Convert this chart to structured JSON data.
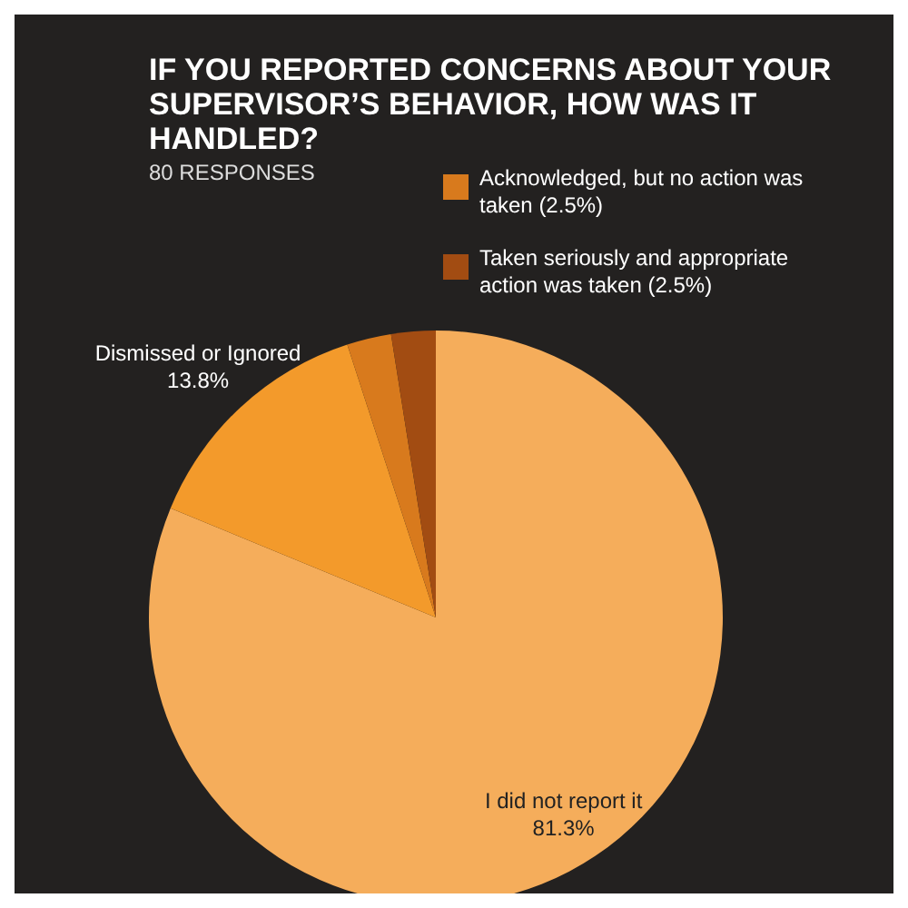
{
  "chart_data": {
    "type": "pie",
    "title": "IF YOU REPORTED CONCERNS ABOUT YOUR SUPERVISOR’S BEHAVIOR, HOW WAS IT HANDLED?",
    "subtitle": "80 RESPONSES",
    "categories": [
      "I did not report it",
      "Dismissed or Ignored",
      "Acknowledged, but no action was taken",
      "Taken seriously and appropriate action was taken"
    ],
    "values": [
      81.3,
      13.8,
      2.5,
      2.5
    ],
    "value_labels": [
      "81.3%",
      "13.8%",
      "(2.5%)",
      "(2.5%)"
    ],
    "colors": [
      "#f5ad5b",
      "#f39a2b",
      "#d87a1d",
      "#a24c12"
    ],
    "legend": "top right"
  }
}
